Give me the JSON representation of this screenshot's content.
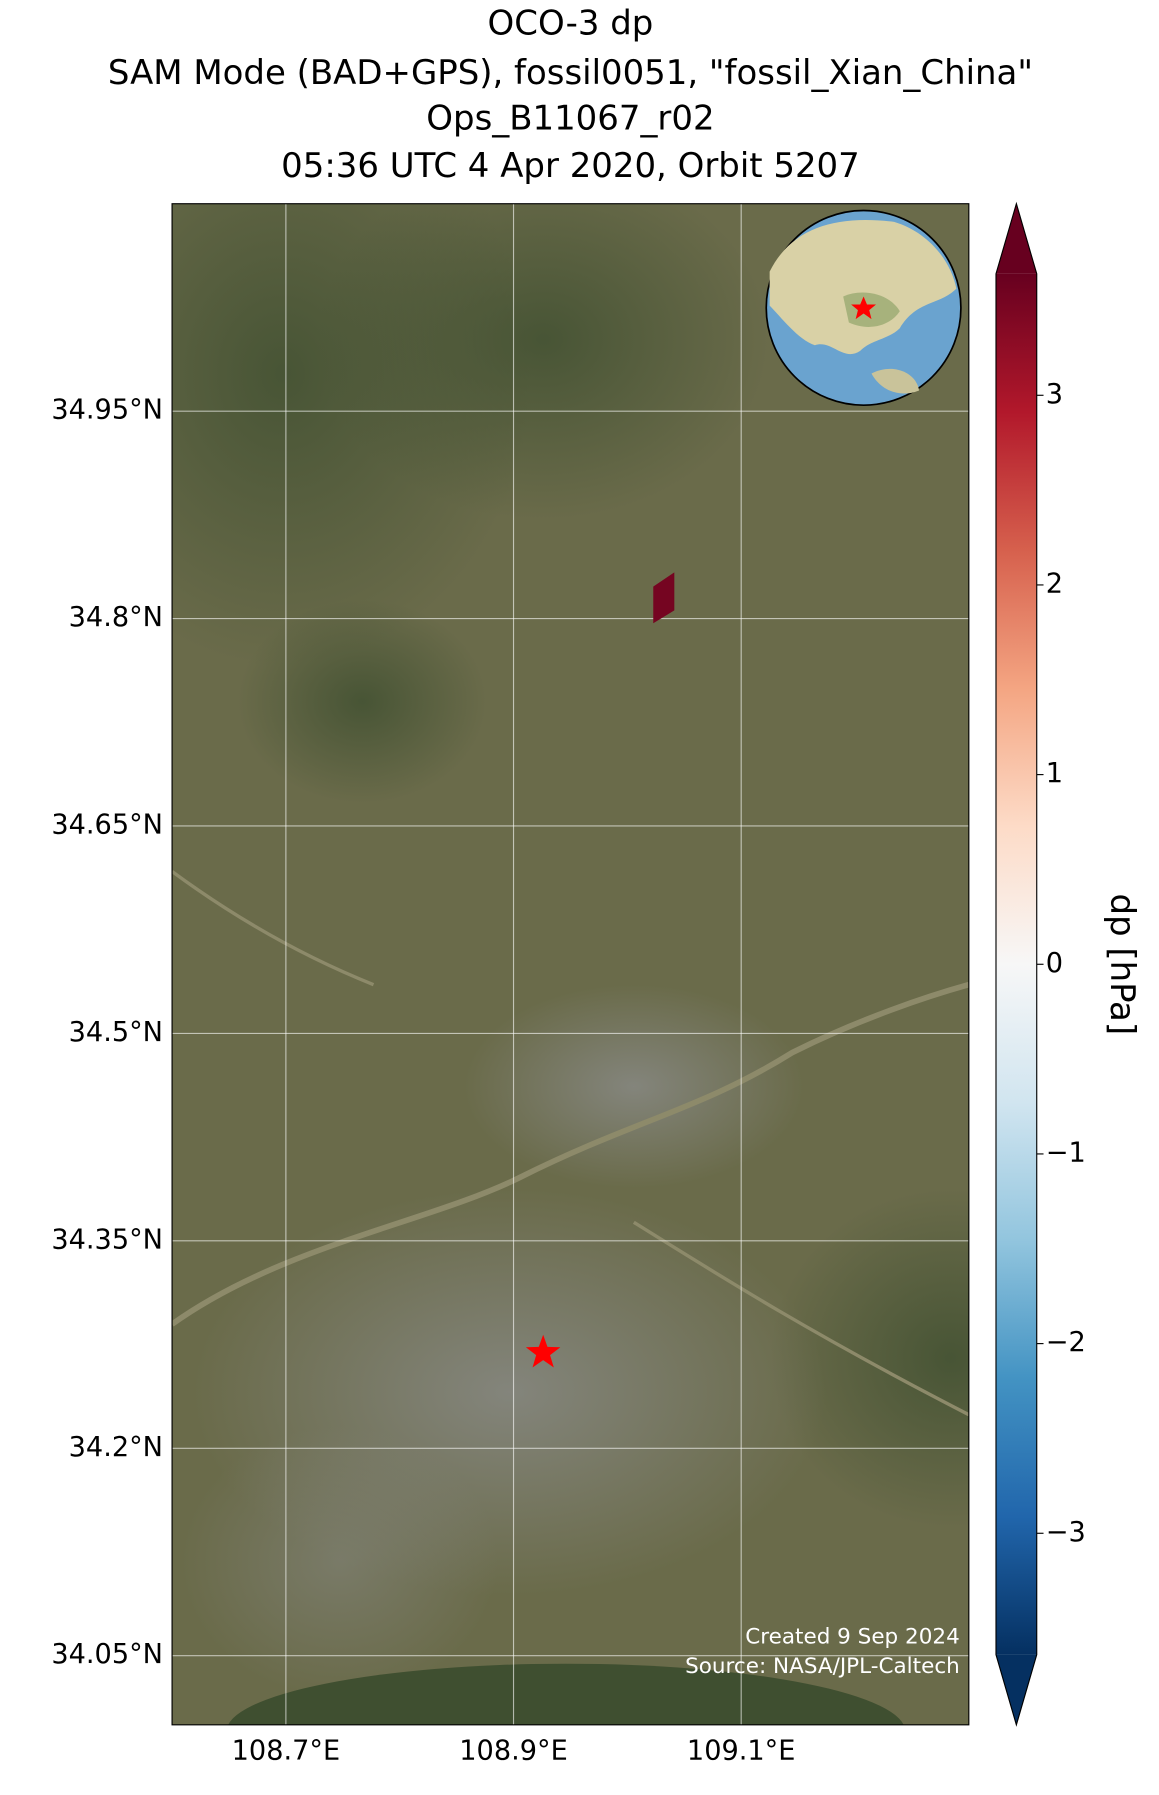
{
  "chart_data": {
    "type": "map",
    "title_lines": [
      "OCO-3 dp",
      "SAM Mode (BAD+GPS), fossil0051, \"fossil_Xian_China\"",
      "Ops_B11067_r02",
      "05:36 UTC 4 Apr 2020, Orbit 5207"
    ],
    "xlim": [
      108.6,
      109.3
    ],
    "ylim": [
      34.0,
      35.1
    ],
    "xticks": [
      {
        "value": 108.7,
        "label": "108.7°E"
      },
      {
        "value": 108.9,
        "label": "108.9°E"
      },
      {
        "value": 109.1,
        "label": "109.1°E"
      }
    ],
    "yticks": [
      {
        "value": 34.05,
        "label": "34.05°N"
      },
      {
        "value": 34.2,
        "label": "34.2°N"
      },
      {
        "value": 34.35,
        "label": "34.35°N"
      },
      {
        "value": 34.5,
        "label": "34.5°N"
      },
      {
        "value": 34.65,
        "label": "34.65°N"
      },
      {
        "value": 34.8,
        "label": "34.8°N"
      },
      {
        "value": 34.95,
        "label": "34.95°N"
      }
    ],
    "grid": true,
    "target": {
      "lon": 108.926,
      "lat": 34.269,
      "color": "#ff0000"
    },
    "footprints": [
      {
        "lon": [
          109.023,
          109.041,
          109.041,
          109.023
        ],
        "lat": [
          34.823,
          34.833,
          34.806,
          34.797
        ],
        "value": 3.5
      }
    ],
    "colorbar": {
      "label": "dp [hPa]",
      "clim": [
        -3.64,
        3.64
      ],
      "cmap": "RdBu_r",
      "ticks": [
        {
          "value": -3,
          "label": "−3"
        },
        {
          "value": -2,
          "label": "−2"
        },
        {
          "value": -1,
          "label": "−1"
        },
        0,
        1,
        2,
        3
      ]
    },
    "credits": [
      "Created 9 Sep 2024",
      "Source: NASA/JPL-Caltech"
    ]
  }
}
